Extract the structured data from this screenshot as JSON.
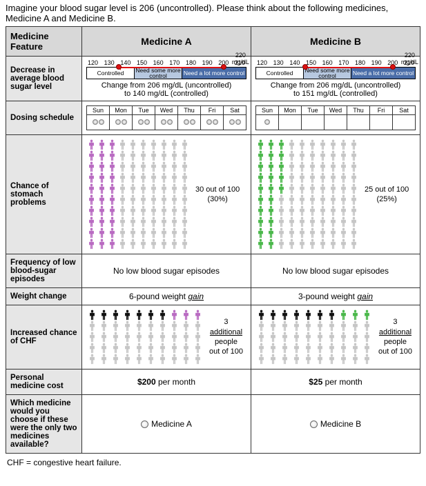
{
  "intro": "Imagine your blood sugar level is 206 (uncontrolled). Please think about the following medicines, Medicine A and Medicine B.",
  "headers": {
    "feature": "Medicine Feature",
    "medA": "Medicine A",
    "medB": "Medicine B"
  },
  "rows": {
    "decrease": {
      "label": "Decrease in average blood sugar level",
      "ticks": [
        "120",
        "130",
        "140",
        "150",
        "160",
        "170",
        "180",
        "190",
        "200",
        "210"
      ],
      "top_val": "220",
      "unit": "mg/dL",
      "segs": {
        "controlled": "Controlled",
        "need1": "Need some more control",
        "need2": "Need a lot more control"
      },
      "A": {
        "change_l1": "Change from 206 mg/dL (uncontrolled)",
        "change_l2": "to 140 mg/dL (controlled)",
        "from_pct": 86,
        "to_pct": 20
      },
      "B": {
        "change_l1": "Change from 206 mg/dL (uncontrolled)",
        "change_l2": "to 151 mg/dL (controlled)",
        "from_pct": 86,
        "to_pct": 31
      }
    },
    "dosing": {
      "label": "Dosing schedule",
      "days": [
        "Sun",
        "Mon",
        "Tue",
        "Wed",
        "Thu",
        "Fri",
        "Sat"
      ],
      "A": [
        2,
        2,
        2,
        2,
        2,
        2,
        2
      ],
      "B": [
        1,
        0,
        0,
        0,
        0,
        0,
        0
      ]
    },
    "stomach": {
      "label": "Chance of stomach problems",
      "A": {
        "count": 30,
        "text1": "30 out of 100",
        "text2": "(30%)",
        "color": "#b96bc2"
      },
      "B": {
        "count": 25,
        "text1": "25 out of 100",
        "text2": "(25%)",
        "color": "#4bb84b"
      }
    },
    "lowbs": {
      "label": "Frequency of low blood-sugar episodes",
      "A": "No low blood sugar episodes",
      "B": "No low blood sugar episodes"
    },
    "weight": {
      "label": "Weight change",
      "A_pre": "6-pound weight ",
      "A_it": "gain",
      "B_pre": "3-pound weight ",
      "B_it": "gain"
    },
    "chf": {
      "label": "Increased chance of CHF",
      "baseline": 7,
      "added": 3,
      "A_color": "#b96bc2",
      "B_color": "#4bb84b",
      "txt1": "3",
      "txt2": "additional",
      "txt3": "people",
      "txt4": "out of 100"
    },
    "cost": {
      "label": "Personal medicine cost",
      "A_bold": "$200",
      "A_rest": " per month",
      "B_bold": "$25",
      "B_rest": " per month"
    },
    "choice": {
      "label": "Which medicine would you choose if these were the only two medicines available?",
      "A": "Medicine A",
      "B": "Medicine B"
    }
  },
  "footnote": "CHF = congestive heart failure.",
  "neutral_color": "#c6c6c6",
  "black_color": "#111"
}
